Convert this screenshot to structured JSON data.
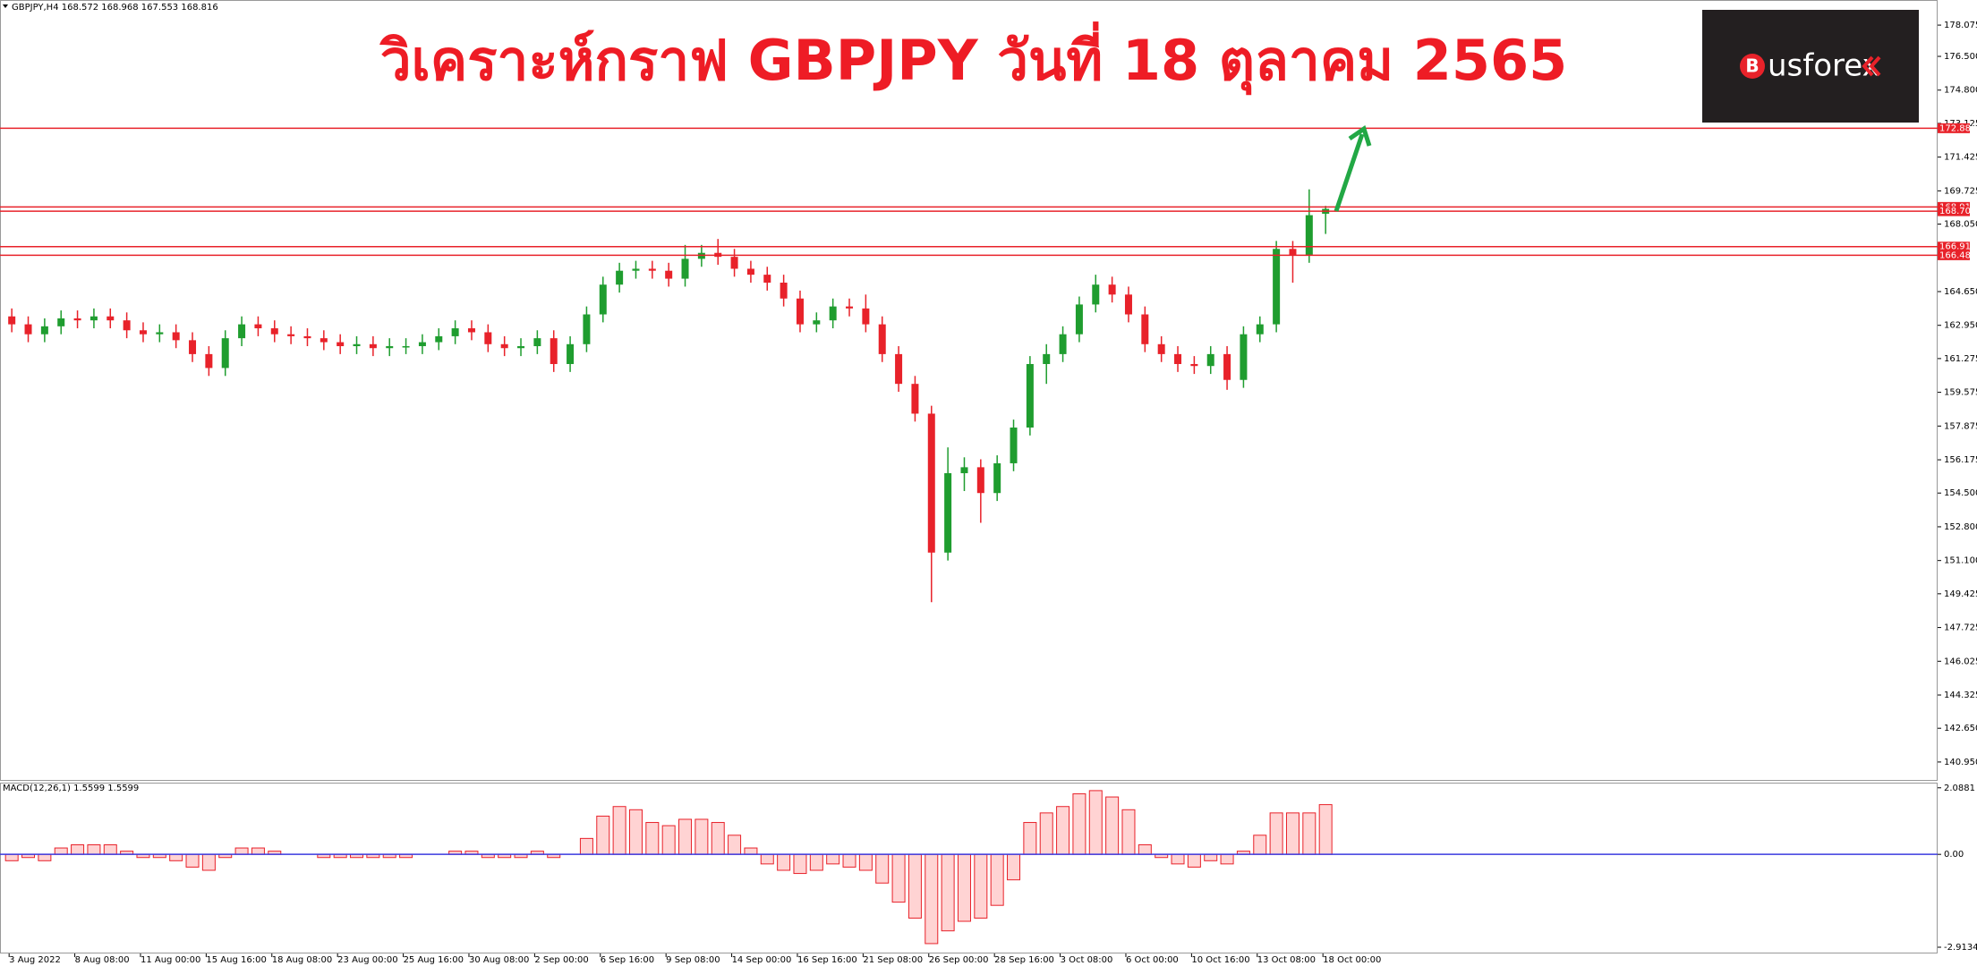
{
  "logo_mark": "B",
  "logo_text": "usforex",
  "chart_data": [
    {
      "type": "candlestick",
      "title": "วิเคราะห์กราฟ GBPJPY วันที่ 18 ตุลาคม 2565",
      "subtitle": "GBPJPY,H4  168.572 168.968 167.553 168.816",
      "up_color": "#1f9d2f",
      "down_color": "#e8222a",
      "ylim": [
        140.0,
        179.34
      ],
      "yticks": [
        178.075,
        {
          "value": 176.5,
          "label": "176.500"
        },
        {
          "value": 174.8,
          "label": "174.800"
        },
        173.125,
        171.425,
        169.725,
        {
          "value": 168.05,
          "label": "168.050"
        },
        {
          "value": 164.65,
          "label": "164.650"
        },
        {
          "value": 162.95,
          "label": "162.950"
        },
        161.275,
        159.575,
        157.875,
        156.175,
        {
          "value": 154.5,
          "label": "154.500"
        },
        {
          "value": 152.8,
          "label": "152.800"
        },
        {
          "value": 151.1,
          "label": "151.100"
        },
        149.425,
        147.725,
        146.025,
        144.325,
        {
          "value": 142.65,
          "label": "142.650"
        },
        {
          "value": 140.95,
          "label": "140.950"
        }
      ],
      "levels": [
        {
          "value": 172.88,
          "label": "172.880"
        },
        168.914,
        {
          "value": 168.7,
          "label": "168.700"
        },
        166.914,
        {
          "value": 166.48,
          "label": "166.480"
        }
      ],
      "level_color": "#e8222a",
      "open": [
        163.4,
        163.0,
        162.5,
        162.9,
        163.3,
        163.2,
        163.4,
        163.2,
        162.7,
        162.5,
        162.6,
        162.2,
        161.5,
        160.8,
        162.3,
        163.0,
        162.8,
        162.5,
        162.4,
        162.3,
        162.1,
        161.9,
        162.0,
        161.8,
        161.9,
        161.9,
        162.1,
        162.4,
        162.8,
        162.6,
        162.0,
        161.8,
        161.9,
        162.3,
        161.0,
        162.0,
        163.5,
        165.0,
        165.7,
        165.8,
        165.7,
        165.3,
        166.3,
        166.6,
        166.4,
        165.8,
        165.5,
        165.1,
        164.3,
        163.0,
        163.2,
        163.9,
        163.8,
        163.0,
        161.5,
        160.0,
        158.5,
        151.5,
        155.5,
        155.8,
        154.5,
        156.0,
        157.8,
        161.0,
        161.5,
        162.5,
        164.0,
        165.0,
        164.5,
        163.5,
        162.0,
        161.5,
        161.0,
        160.9,
        161.5,
        160.2,
        162.5,
        163.0,
        166.8,
        166.5,
        168.572
      ],
      "high": [
        163.8,
        163.4,
        163.3,
        163.7,
        163.7,
        163.8,
        163.8,
        163.6,
        163.1,
        163.0,
        163.0,
        162.6,
        161.9,
        162.7,
        163.4,
        163.4,
        163.2,
        162.9,
        162.8,
        162.7,
        162.5,
        162.4,
        162.4,
        162.3,
        162.3,
        162.5,
        162.8,
        163.2,
        163.2,
        163.0,
        162.4,
        162.3,
        162.7,
        162.7,
        162.4,
        163.9,
        165.4,
        166.1,
        166.2,
        166.2,
        166.1,
        167.0,
        167.0,
        167.3,
        166.8,
        166.2,
        165.9,
        165.5,
        164.7,
        163.6,
        164.3,
        164.3,
        164.5,
        163.4,
        161.9,
        160.4,
        158.9,
        156.8,
        156.3,
        156.2,
        156.4,
        158.2,
        161.4,
        162.0,
        162.9,
        164.4,
        165.5,
        165.4,
        164.9,
        163.9,
        162.4,
        161.9,
        161.4,
        161.9,
        161.9,
        162.9,
        163.4,
        167.2,
        167.2,
        169.8,
        168.968
      ],
      "low": [
        162.6,
        162.1,
        162.1,
        162.5,
        162.8,
        162.8,
        162.8,
        162.3,
        162.1,
        162.1,
        161.8,
        161.1,
        160.4,
        160.4,
        161.9,
        162.4,
        162.1,
        162.0,
        161.9,
        161.7,
        161.5,
        161.5,
        161.4,
        161.4,
        161.5,
        161.5,
        161.7,
        162.0,
        162.2,
        161.6,
        161.4,
        161.4,
        161.5,
        160.6,
        160.6,
        161.6,
        163.1,
        164.6,
        165.3,
        165.3,
        164.9,
        164.9,
        165.9,
        166.0,
        165.4,
        165.1,
        164.7,
        163.9,
        162.6,
        162.6,
        162.8,
        163.4,
        162.6,
        161.1,
        159.6,
        158.1,
        149.0,
        151.1,
        154.6,
        153.0,
        154.1,
        155.6,
        157.4,
        160.0,
        161.1,
        162.1,
        163.6,
        164.1,
        163.1,
        161.6,
        161.1,
        160.6,
        160.5,
        160.5,
        159.7,
        159.8,
        162.1,
        162.6,
        165.1,
        166.1,
        167.553
      ],
      "close": [
        163.0,
        162.5,
        162.9,
        163.3,
        163.2,
        163.4,
        163.2,
        162.7,
        162.5,
        162.6,
        162.2,
        161.5,
        160.8,
        162.3,
        163.0,
        162.8,
        162.5,
        162.4,
        162.3,
        162.1,
        161.9,
        162.0,
        161.8,
        161.9,
        161.9,
        162.1,
        162.4,
        162.8,
        162.6,
        162.0,
        161.8,
        161.9,
        162.3,
        161.0,
        162.0,
        163.5,
        165.0,
        165.7,
        165.8,
        165.7,
        165.3,
        166.3,
        166.6,
        166.4,
        165.8,
        165.5,
        165.1,
        164.3,
        163.0,
        163.2,
        163.9,
        163.8,
        163.0,
        161.5,
        160.0,
        158.5,
        151.5,
        155.5,
        155.8,
        154.5,
        156.0,
        157.8,
        161.0,
        161.5,
        162.5,
        164.0,
        165.0,
        164.5,
        163.5,
        162.0,
        161.5,
        161.0,
        160.9,
        161.5,
        160.2,
        162.5,
        163.0,
        166.8,
        166.5,
        168.5,
        168.816
      ]
    },
    {
      "type": "bar",
      "title": "MACD(12,26,1) 1.5599 1.5599",
      "color": "#e8222a",
      "zero_color": "#3a3adf",
      "ylim": [
        -3.11,
        2.25
      ],
      "yticks": [
        2.0881,
        {
          "value": 0,
          "label": "0.00"
        },
        -2.9134
      ],
      "categories": [
        "3 Aug 2022",
        null,
        null,
        null,
        "8 Aug 08:00",
        null,
        null,
        null,
        "11 Aug 00:00",
        null,
        null,
        null,
        "15 Aug 16:00",
        null,
        null,
        null,
        "18 Aug 08:00",
        null,
        null,
        null,
        "23 Aug 00:00",
        null,
        null,
        null,
        "25 Aug 16:00",
        null,
        null,
        null,
        "30 Aug 08:00",
        null,
        null,
        null,
        "2 Sep 00:00",
        null,
        null,
        null,
        "6 Sep 16:00",
        null,
        null,
        null,
        "9 Sep 08:00",
        null,
        null,
        null,
        "14 Sep 00:00",
        null,
        null,
        null,
        "16 Sep 16:00",
        null,
        null,
        null,
        "21 Sep 08:00",
        null,
        null,
        null,
        "26 Sep 00:00",
        null,
        null,
        null,
        "28 Sep 16:00",
        null,
        null,
        null,
        "3 Oct 08:00",
        null,
        null,
        null,
        "6 Oct 00:00",
        null,
        null,
        null,
        "10 Oct 16:00",
        null,
        null,
        null,
        "13 Oct 08:00",
        null,
        null,
        null,
        "18 Oct 00:00"
      ],
      "values": [
        -0.2,
        -0.1,
        -0.2,
        0.2,
        0.3,
        0.3,
        0.3,
        0.1,
        -0.1,
        -0.1,
        -0.2,
        -0.4,
        -0.5,
        -0.1,
        0.2,
        0.2,
        0.1,
        0.0,
        0.0,
        -0.1,
        -0.1,
        -0.1,
        -0.1,
        -0.1,
        -0.1,
        0.0,
        0.0,
        0.1,
        0.1,
        -0.1,
        -0.1,
        -0.1,
        0.1,
        -0.1,
        0.0,
        0.5,
        1.2,
        1.5,
        1.4,
        1.0,
        0.9,
        1.1,
        1.1,
        1.0,
        0.6,
        0.2,
        -0.3,
        -0.5,
        -0.6,
        -0.5,
        -0.3,
        -0.4,
        -0.5,
        -0.9,
        -1.5,
        -2.0,
        -2.8,
        -2.4,
        -2.1,
        -2.0,
        -1.6,
        -0.8,
        1.0,
        1.3,
        1.5,
        1.9,
        2.0,
        1.8,
        1.4,
        0.3,
        -0.1,
        -0.3,
        -0.4,
        -0.2,
        -0.3,
        0.1,
        0.6,
        1.3,
        1.3,
        1.3,
        1.5599
      ]
    }
  ]
}
